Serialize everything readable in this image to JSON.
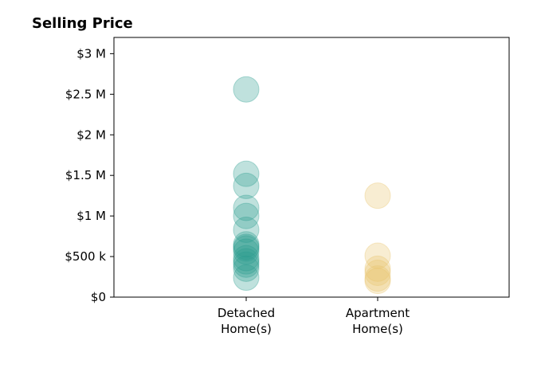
{
  "chart_data": {
    "type": "scatter",
    "title": "Selling Price",
    "xlabel": "",
    "ylabel": "",
    "ylim": [
      0,
      3200000
    ],
    "grid": false,
    "legend": "none",
    "y_ticks": [
      {
        "value": 0,
        "label": "$0"
      },
      {
        "value": 500000,
        "label": "$500 k"
      },
      {
        "value": 1000000,
        "label": "$1 M"
      },
      {
        "value": 1500000,
        "label": "$1.5 M"
      },
      {
        "value": 2000000,
        "label": "$2 M"
      },
      {
        "value": 2500000,
        "label": "$2.5 M"
      },
      {
        "value": 3000000,
        "label": "$3 M"
      }
    ],
    "categories": [
      {
        "lines": [
          "Detached",
          "Home(s)"
        ]
      },
      {
        "lines": [
          "Apartment",
          "Home(s)"
        ]
      }
    ],
    "series": [
      {
        "category_index": 0,
        "color": "#2a9d8f",
        "values": [
          2560000,
          1520000,
          1370000,
          1100000,
          1000000,
          830000,
          650000,
          620000,
          600000,
          560000,
          480000,
          440000,
          400000,
          350000,
          240000
        ]
      },
      {
        "category_index": 1,
        "color": "#e9c46a",
        "values": [
          1250000,
          510000,
          350000,
          300000,
          230000,
          200000
        ]
      }
    ]
  }
}
